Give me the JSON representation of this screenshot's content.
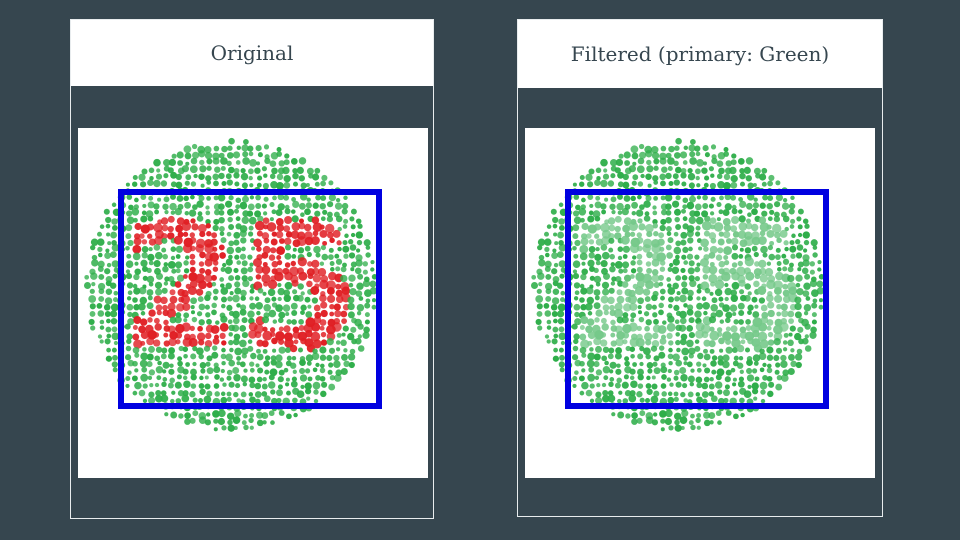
{
  "panels": [
    {
      "title": "Original",
      "plate_number": "25",
      "colors": {
        "background_dot": "#2fae4a",
        "number_dot": "#e01f24"
      }
    },
    {
      "title": "Filtered (primary: Green)",
      "plate_number": "25",
      "colors": {
        "background_dot": "#2fae4a",
        "number_dot": "#76c98a"
      }
    }
  ],
  "highlight_box_color": "#0000e0"
}
